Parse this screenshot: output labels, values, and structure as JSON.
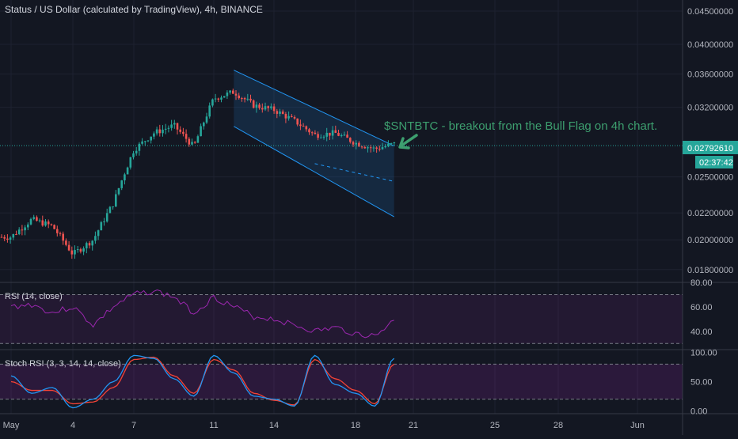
{
  "header": {
    "title": "Status / US Dollar (calculated by TradingView), 4h, BINANCE"
  },
  "annotation": {
    "text": "$SNTBTC - breakout from the Bull Flag on 4h chart."
  },
  "price_label": {
    "value": "0.02792610",
    "countdown": "02:37:42"
  },
  "rsi_panel": {
    "label": "RSI (14, close)",
    "ticks": [
      "80.00",
      "60.00",
      "40.00"
    ]
  },
  "stoch_panel": {
    "label": "Stoch RSI (3, 3, 14, 14, close)",
    "ticks": [
      "100.00",
      "50.00",
      "0.00"
    ]
  },
  "colors": {
    "background": "#131722",
    "up": "#26a69a",
    "down": "#ef5350",
    "channel": "#2196f3",
    "annotation": "#3d9f6f",
    "rsi": "#9c27b0",
    "stoch_k": "#2196f3",
    "stoch_d": "#f44336",
    "grid": "#1e2230"
  },
  "chart_data": [
    {
      "type": "candlestick",
      "title": "Status / US Dollar (calculated by TradingView), 4h, BINANCE",
      "y_scale": "log",
      "ylim": [
        0.0172,
        0.0468
      ],
      "y_ticks": [
        "0.04500000",
        "0.04000000",
        "0.03600000",
        "0.03200000",
        "0.02500000",
        "0.02200000",
        "0.02000000",
        "0.01800000"
      ],
      "x_ticks": [
        "May",
        "4",
        "7",
        "11",
        "14",
        "18",
        "21",
        "25",
        "28",
        "Jun"
      ],
      "last_price": 0.0279261,
      "price_points": [
        [
          "May",
          0.0202
        ],
        [
          "2",
          0.0215
        ],
        [
          "3",
          0.021
        ],
        [
          "4",
          0.019
        ],
        [
          "5",
          0.02
        ],
        [
          "6",
          0.0228
        ],
        [
          "7",
          0.0275
        ],
        [
          "8",
          0.0292
        ],
        [
          "9",
          0.03
        ],
        [
          "10",
          0.0278
        ],
        [
          "11",
          0.033
        ],
        [
          "12",
          0.0338
        ],
        [
          "13",
          0.0322
        ],
        [
          "14",
          0.0317
        ],
        [
          "15",
          0.0305
        ],
        [
          "16",
          0.029
        ],
        [
          "17",
          0.0292
        ],
        [
          "18",
          0.0282
        ],
        [
          "19",
          0.0276
        ],
        [
          "20",
          0.0281
        ]
      ],
      "channel": {
        "upper": [
          [
            "12",
            0.0365
          ],
          [
            "20",
            0.0279
          ]
        ],
        "lower": [
          [
            "12",
            0.0299
          ],
          [
            "20",
            0.0217
          ]
        ],
        "mid_dashed": [
          [
            "16",
            0.0262
          ],
          [
            "20",
            0.0246
          ]
        ]
      }
    },
    {
      "type": "line",
      "title": "RSI (14, close)",
      "ylim": [
        25,
        80
      ],
      "y_ticks": [
        "80.00",
        "60.00",
        "40.00"
      ],
      "band": [
        30,
        70
      ],
      "series": [
        {
          "values": [
            60,
            62,
            55,
            60,
            45,
            60,
            70,
            73,
            68,
            55,
            68,
            60,
            52,
            50,
            45,
            40,
            43,
            38,
            36,
            49
          ]
        }
      ]
    },
    {
      "type": "line",
      "title": "Stoch RSI (3, 3, 14, 14, close)",
      "ylim": [
        -5,
        105
      ],
      "y_ticks": [
        "100.00",
        "50.00",
        "0.00"
      ],
      "band": [
        20,
        80
      ],
      "series": [
        {
          "values": [
            60,
            30,
            40,
            5,
            20,
            50,
            95,
            90,
            55,
            25,
            95,
            65,
            25,
            20,
            8,
            95,
            45,
            30,
            8,
            90
          ]
        },
        {
          "values": [
            50,
            35,
            35,
            12,
            15,
            40,
            88,
            92,
            60,
            30,
            88,
            70,
            30,
            18,
            10,
            88,
            55,
            35,
            12,
            80
          ]
        }
      ]
    }
  ]
}
